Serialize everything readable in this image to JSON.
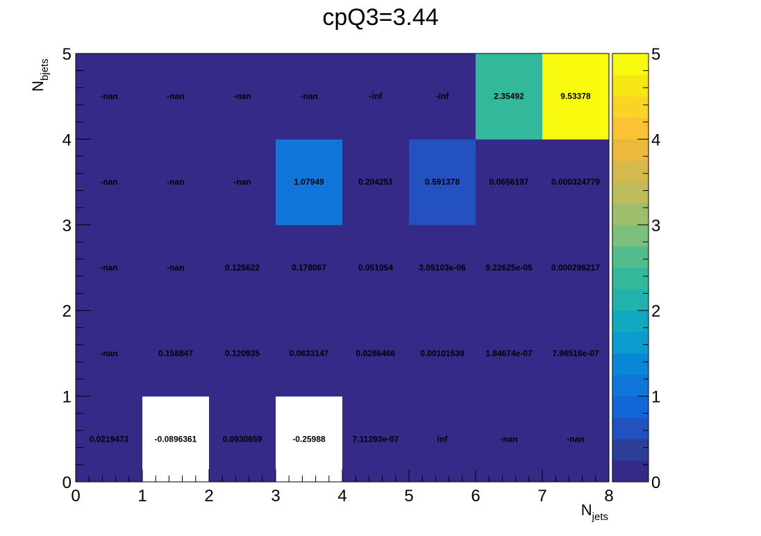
{
  "chart_data": {
    "type": "heatmap",
    "title": "cpQ3=3.44",
    "xlabel": {
      "main": "N",
      "sub": "jets"
    },
    "ylabel": {
      "main": "N",
      "sub": "bjets"
    },
    "xlim": [
      0,
      8
    ],
    "ylim": [
      0,
      5
    ],
    "x_ticks": [
      "0",
      "1",
      "2",
      "3",
      "4",
      "5",
      "6",
      "7",
      "8"
    ],
    "y_ticks": [
      "0",
      "1",
      "2",
      "3",
      "4",
      "5"
    ],
    "zlim": [
      0,
      5
    ],
    "z_ticks": [
      "0",
      "1",
      "2",
      "3",
      "4",
      "5"
    ],
    "colorscale": [
      "#352a87",
      "#2c3f97",
      "#2352c0",
      "#1366d9",
      "#1076da",
      "#0a87d4",
      "#099ccd",
      "#10a9c0",
      "#22b2ad",
      "#33b89c",
      "#52bd8c",
      "#7abf7b",
      "#9dbf6c",
      "#bdbb5c",
      "#d6b94d",
      "#ebba3d",
      "#fbc333",
      "#fad424",
      "#f6e614",
      "#f9fb0e"
    ],
    "cells": [
      {
        "x": 0,
        "y": 0,
        "label": "0.0219473",
        "value": 0.0219473
      },
      {
        "x": 1,
        "y": 0,
        "label": "-0.0896361",
        "value": -0.0896361
      },
      {
        "x": 2,
        "y": 0,
        "label": "0.0930659",
        "value": 0.0930659
      },
      {
        "x": 3,
        "y": 0,
        "label": "-0.25988",
        "value": -0.25988
      },
      {
        "x": 4,
        "y": 0,
        "label": "7.11293e-07",
        "value": 7.11293e-07
      },
      {
        "x": 5,
        "y": 0,
        "label": "inf",
        "value": null
      },
      {
        "x": 6,
        "y": 0,
        "label": "-nan",
        "value": null
      },
      {
        "x": 7,
        "y": 0,
        "label": "-nan",
        "value": null
      },
      {
        "x": 0,
        "y": 1,
        "label": "-nan",
        "value": null
      },
      {
        "x": 1,
        "y": 1,
        "label": "0.158847",
        "value": 0.158847
      },
      {
        "x": 2,
        "y": 1,
        "label": "0.120935",
        "value": 0.120935
      },
      {
        "x": 3,
        "y": 1,
        "label": "0.0633147",
        "value": 0.0633147
      },
      {
        "x": 4,
        "y": 1,
        "label": "0.0286466",
        "value": 0.0286466
      },
      {
        "x": 5,
        "y": 1,
        "label": "0.00101539",
        "value": 0.00101539
      },
      {
        "x": 6,
        "y": 1,
        "label": "1.84674e-07",
        "value": 1.84674e-07
      },
      {
        "x": 7,
        "y": 1,
        "label": "7.96516e-07",
        "value": 7.96516e-07
      },
      {
        "x": 0,
        "y": 2,
        "label": "-nan",
        "value": null
      },
      {
        "x": 1,
        "y": 2,
        "label": "-nan",
        "value": null
      },
      {
        "x": 2,
        "y": 2,
        "label": "0.125622",
        "value": 0.125622
      },
      {
        "x": 3,
        "y": 2,
        "label": "0.178067",
        "value": 0.178067
      },
      {
        "x": 4,
        "y": 2,
        "label": "0.051054",
        "value": 0.051054
      },
      {
        "x": 5,
        "y": 2,
        "label": "3.05103e-06",
        "value": 3.05103e-06
      },
      {
        "x": 6,
        "y": 2,
        "label": "9.22625e-05",
        "value": 9.22625e-05
      },
      {
        "x": 7,
        "y": 2,
        "label": "0.000296217",
        "value": 0.000296217
      },
      {
        "x": 0,
        "y": 3,
        "label": "-nan",
        "value": null
      },
      {
        "x": 1,
        "y": 3,
        "label": "-nan",
        "value": null
      },
      {
        "x": 2,
        "y": 3,
        "label": "-nan",
        "value": null
      },
      {
        "x": 3,
        "y": 3,
        "label": "1.07949",
        "value": 1.07949
      },
      {
        "x": 4,
        "y": 3,
        "label": "0.204251",
        "value": 0.204251
      },
      {
        "x": 5,
        "y": 3,
        "label": "0.591378",
        "value": 0.591378
      },
      {
        "x": 6,
        "y": 3,
        "label": "0.0656197",
        "value": 0.0656197
      },
      {
        "x": 7,
        "y": 3,
        "label": "0.000324779",
        "value": 0.000324779
      },
      {
        "x": 0,
        "y": 4,
        "label": "-nan",
        "value": null
      },
      {
        "x": 1,
        "y": 4,
        "label": "-nan",
        "value": null
      },
      {
        "x": 2,
        "y": 4,
        "label": "-nan",
        "value": null
      },
      {
        "x": 3,
        "y": 4,
        "label": "-nan",
        "value": null
      },
      {
        "x": 4,
        "y": 4,
        "label": "-inf",
        "value": null
      },
      {
        "x": 5,
        "y": 4,
        "label": "-inf",
        "value": null
      },
      {
        "x": 6,
        "y": 4,
        "label": "2.35492",
        "value": 2.35492
      },
      {
        "x": 7,
        "y": 4,
        "label": "9.53378",
        "value": 9.53378
      }
    ],
    "colors": {
      "undefined_cell": "#352a87",
      "below_range_cell": "#ffffff",
      "axis": "#000000"
    }
  }
}
